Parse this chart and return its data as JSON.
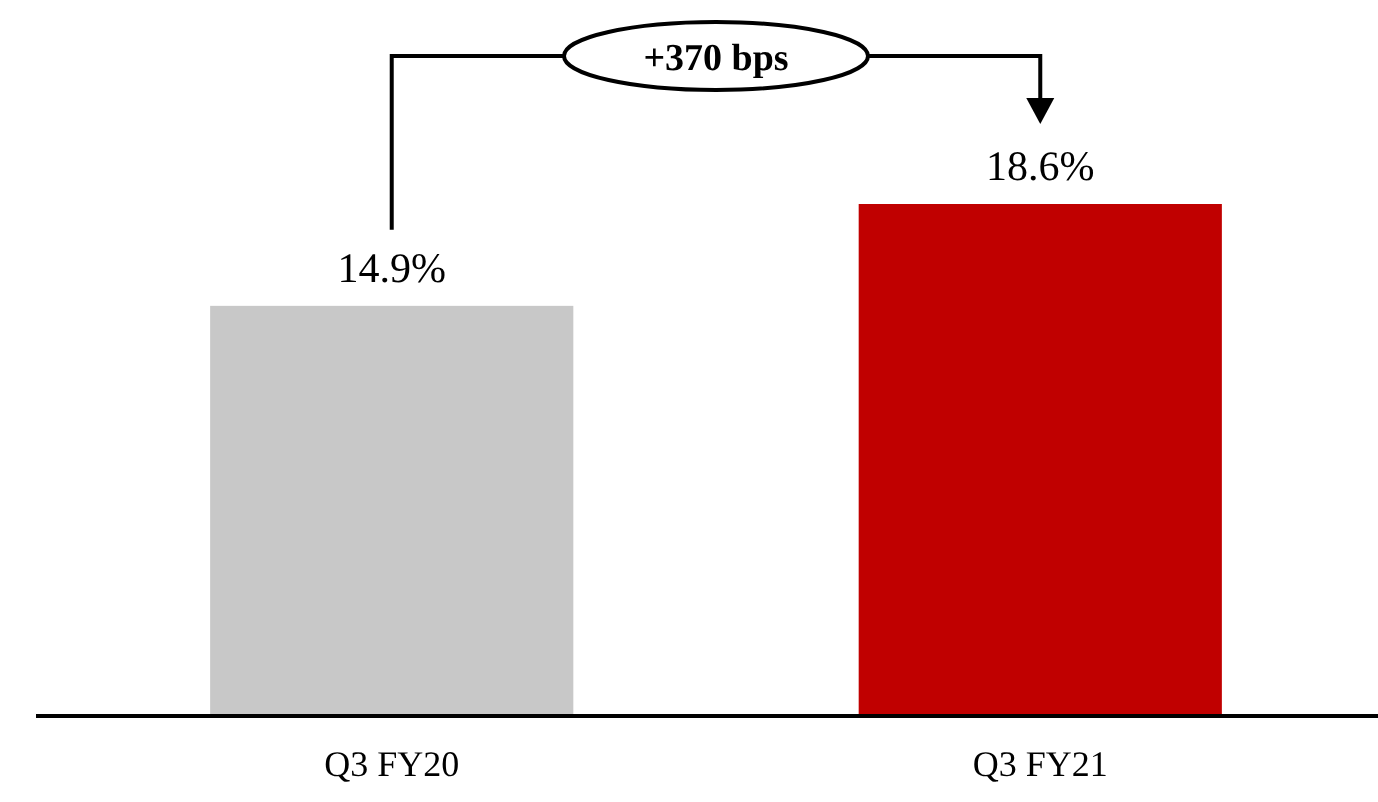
{
  "chart_data": {
    "type": "bar",
    "categories": [
      "Q3 FY20",
      "Q3 FY21"
    ],
    "values": [
      14.9,
      18.6
    ],
    "colors": [
      "#c8c8c8",
      "#c00000"
    ],
    "value_labels": [
      "14.9%",
      "18.6%"
    ],
    "annotations": [
      "+370 bps"
    ]
  }
}
